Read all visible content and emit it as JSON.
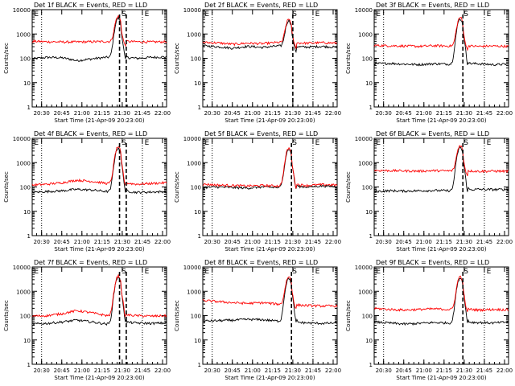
{
  "colors": {
    "black_series": "#000000",
    "red_series": "#ff0000",
    "axes": "#000000",
    "background": "#ffffff"
  },
  "shared": {
    "x_ticks": [
      "20:30",
      "20:45",
      "21:00",
      "21:15",
      "21:30",
      "21:45",
      "22:00"
    ],
    "y_ticks": [
      "1",
      "10",
      "100",
      "1000",
      "10000"
    ],
    "xlabel": "Start Time (21-Apr-09 20:23:00)",
    "ylabel": "Counts/sec",
    "markers": [
      "E",
      "S",
      "E"
    ]
  },
  "chart_data": [
    {
      "type": "line",
      "title": "Det 1f BLACK = Events, RED = LLD",
      "xlabel": "Start Time (21-Apr-09 20:23:00)",
      "ylabel": "Counts/sec",
      "xlim_min": [
        0,
        100
      ],
      "ylim_log": [
        1,
        10000
      ],
      "peak_min": 64,
      "peak_max": 4800,
      "dashed_min": [
        65,
        70
      ],
      "dotted_min": [
        7,
        82
      ],
      "series": [
        {
          "name": "Events",
          "color": "black",
          "base": [
            95,
            110,
            105,
            80,
            95,
            110,
            112,
            100,
            110,
            115
          ]
        },
        {
          "name": "LLD",
          "color": "red",
          "base": [
            500,
            480,
            470,
            470,
            480,
            490,
            500,
            480,
            470,
            480
          ]
        }
      ]
    },
    {
      "type": "line",
      "title": "Det 2f BLACK = Events, RED = LLD",
      "xlabel": "Start Time (21-Apr-09 20:23:00)",
      "ylabel": "Counts/sec",
      "xlim_min": [
        0,
        100
      ],
      "ylim_log": [
        1,
        10000
      ],
      "peak_min": 64,
      "peak_max": 3600,
      "dashed_min": [
        67
      ],
      "dotted_min": [
        7,
        82
      ],
      "series": [
        {
          "name": "Events",
          "color": "black",
          "base": [
            330,
            300,
            260,
            310,
            280,
            320,
            300,
            290,
            310,
            280
          ]
        },
        {
          "name": "LLD",
          "color": "red",
          "base": [
            450,
            430,
            380,
            420,
            400,
            450,
            430,
            420,
            440,
            420
          ]
        }
      ]
    },
    {
      "type": "line",
      "title": "Det 3f BLACK = Events, RED = LLD",
      "xlabel": "Start Time (21-Apr-09 20:23:00)",
      "ylabel": "Counts/sec",
      "xlim_min": [
        0,
        100
      ],
      "ylim_log": [
        1,
        10000
      ],
      "peak_min": 64,
      "peak_max": 4500,
      "dashed_min": [
        66
      ],
      "dotted_min": [
        7,
        82
      ],
      "series": [
        {
          "name": "Events",
          "color": "black",
          "base": [
            60,
            62,
            58,
            55,
            60,
            58,
            62,
            60,
            55,
            58
          ]
        },
        {
          "name": "LLD",
          "color": "red",
          "base": [
            340,
            330,
            320,
            310,
            330,
            320,
            330,
            310,
            320,
            310
          ]
        }
      ]
    },
    {
      "type": "line",
      "title": "Det 4f BLACK = Events, RED = LLD",
      "xlabel": "Start Time (21-Apr-09 20:23:00)",
      "ylabel": "Counts/sec",
      "xlim_min": [
        0,
        100
      ],
      "ylim_log": [
        1,
        10000
      ],
      "peak_min": 64,
      "peak_max": 4400,
      "dashed_min": [
        65,
        70
      ],
      "dotted_min": [
        7,
        82
      ],
      "series": [
        {
          "name": "Events",
          "color": "black",
          "base": [
            60,
            65,
            70,
            80,
            75,
            65,
            70,
            60,
            62,
            65
          ]
        },
        {
          "name": "LLD",
          "color": "red",
          "base": [
            120,
            130,
            150,
            190,
            170,
            140,
            150,
            130,
            140,
            150
          ]
        }
      ]
    },
    {
      "type": "line",
      "title": "Det 5f BLACK = Events, RED = LLD",
      "xlabel": "Start Time (21-Apr-09 20:23:00)",
      "ylabel": "Counts/sec",
      "xlim_min": [
        0,
        100
      ],
      "ylim_log": [
        1,
        10000
      ],
      "peak_min": 64,
      "peak_max": 3800,
      "dashed_min": [
        66
      ],
      "dotted_min": [
        7,
        82
      ],
      "series": [
        {
          "name": "Events",
          "color": "black",
          "base": [
            95,
            100,
            95,
            90,
            100,
            95,
            110,
            100,
            110,
            105
          ]
        },
        {
          "name": "LLD",
          "color": "red",
          "base": [
            130,
            120,
            115,
            110,
            115,
            110,
            130,
            115,
            125,
            120
          ]
        }
      ]
    },
    {
      "type": "line",
      "title": "Det 6f BLACK = Events, RED = LLD",
      "xlabel": "Start Time (21-Apr-09 20:23:00)",
      "ylabel": "Counts/sec",
      "xlim_min": [
        0,
        100
      ],
      "ylim_log": [
        1,
        10000
      ],
      "peak_min": 64,
      "peak_max": 4600,
      "dashed_min": [
        66
      ],
      "dotted_min": [
        7,
        82
      ],
      "series": [
        {
          "name": "Events",
          "color": "black",
          "base": [
            65,
            70,
            68,
            70,
            72,
            70,
            75,
            80,
            78,
            80
          ]
        },
        {
          "name": "LLD",
          "color": "red",
          "base": [
            480,
            470,
            460,
            450,
            470,
            460,
            470,
            440,
            450,
            440
          ]
        }
      ]
    },
    {
      "type": "line",
      "title": "Det 7f BLACK = Events, RED = LLD",
      "xlabel": "Start Time (21-Apr-09 20:23:00)",
      "ylabel": "Counts/sec",
      "xlim_min": [
        0,
        100
      ],
      "ylim_log": [
        1,
        10000
      ],
      "peak_min": 64,
      "peak_max": 4200,
      "dashed_min": [
        65,
        70
      ],
      "dotted_min": [
        7,
        82
      ],
      "series": [
        {
          "name": "Events",
          "color": "black",
          "base": [
            45,
            48,
            55,
            65,
            55,
            45,
            55,
            50,
            48,
            50
          ]
        },
        {
          "name": "LLD",
          "color": "red",
          "base": [
            95,
            100,
            120,
            160,
            130,
            100,
            110,
            100,
            95,
            100
          ]
        }
      ]
    },
    {
      "type": "line",
      "title": "Det 8f BLACK = Events, RED = LLD",
      "xlabel": "Start Time (21-Apr-09 20:23:00)",
      "ylabel": "Counts/sec",
      "xlim_min": [
        0,
        100
      ],
      "ylim_log": [
        1,
        10000
      ],
      "peak_min": 64,
      "peak_max": 3700,
      "dashed_min": [
        66
      ],
      "dotted_min": [
        7,
        82
      ],
      "series": [
        {
          "name": "Events",
          "color": "black",
          "base": [
            60,
            62,
            65,
            70,
            68,
            60,
            55,
            50,
            48,
            50
          ]
        },
        {
          "name": "LLD",
          "color": "red",
          "base": [
            420,
            380,
            340,
            320,
            340,
            300,
            280,
            260,
            250,
            250
          ]
        }
      ]
    },
    {
      "type": "line",
      "title": "Det 9f BLACK = Events, RED = LLD",
      "xlabel": "Start Time (21-Apr-09 20:23:00)",
      "ylabel": "Counts/sec",
      "xlim_min": [
        0,
        100
      ],
      "ylim_log": [
        1,
        10000
      ],
      "peak_min": 64,
      "peak_max": 3900,
      "dashed_min": [
        66
      ],
      "dotted_min": [
        7,
        82
      ],
      "series": [
        {
          "name": "Events",
          "color": "black",
          "base": [
            55,
            50,
            45,
            48,
            52,
            50,
            55,
            52,
            50,
            55
          ]
        },
        {
          "name": "LLD",
          "color": "red",
          "base": [
            200,
            180,
            170,
            180,
            190,
            180,
            190,
            170,
            180,
            175
          ]
        }
      ]
    }
  ]
}
